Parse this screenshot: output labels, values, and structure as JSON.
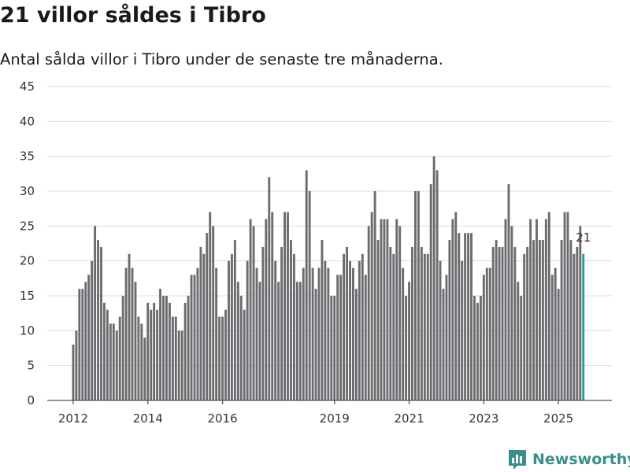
{
  "header": {
    "title": "21 villor såldes i Tibro",
    "subtitle": "Antal sålda villor i Tibro under de senaste tre månaderna."
  },
  "brand": {
    "name": "Newsworthy",
    "color": "#3a8f8c",
    "icon": "newsworthy-logo-icon"
  },
  "chart_data": {
    "type": "bar",
    "title": "21 villor såldes i Tibro",
    "subtitle": "Antal sålda villor i Tibro under de senaste tre månaderna.",
    "xlabel": "",
    "ylabel": "",
    "ylim": [
      0,
      45
    ],
    "yticks": [
      0,
      5,
      10,
      15,
      20,
      25,
      30,
      35,
      40,
      45
    ],
    "grid": true,
    "legend": "none",
    "bar_color": "#6c6c70",
    "highlight_color": "#2a9d94",
    "start_year": 2012,
    "x_tick_years": [
      2012,
      2014,
      2016,
      2019,
      2021,
      2023,
      2025
    ],
    "x_tick_labels": [
      "2012",
      "2014",
      "2016",
      "2019",
      "2021",
      "2023",
      "2025"
    ],
    "frequency": "monthly (rolling 3-month sum)",
    "values": [
      8,
      10,
      16,
      16,
      17,
      18,
      20,
      25,
      23,
      22,
      14,
      13,
      11,
      11,
      10,
      12,
      15,
      19,
      21,
      19,
      17,
      12,
      11,
      9,
      14,
      13,
      14,
      13,
      16,
      15,
      15,
      14,
      12,
      12,
      10,
      10,
      14,
      15,
      18,
      18,
      19,
      22,
      21,
      24,
      27,
      25,
      19,
      12,
      12,
      13,
      20,
      21,
      23,
      17,
      15,
      13,
      20,
      26,
      25,
      19,
      17,
      22,
      26,
      32,
      27,
      20,
      17,
      22,
      27,
      27,
      23,
      21,
      17,
      17,
      19,
      33,
      30,
      19,
      16,
      19,
      23,
      20,
      19,
      15,
      15,
      18,
      18,
      21,
      22,
      20,
      19,
      16,
      20,
      21,
      18,
      25,
      27,
      30,
      23,
      26,
      26,
      26,
      22,
      21,
      26,
      25,
      19,
      15,
      17,
      22,
      30,
      30,
      22,
      21,
      21,
      31,
      35,
      33,
      20,
      16,
      18,
      23,
      26,
      27,
      24,
      20,
      24,
      24,
      24,
      15,
      14,
      15,
      18,
      19,
      19,
      22,
      23,
      22,
      22,
      26,
      31,
      25,
      22,
      17,
      15,
      21,
      22,
      26,
      23,
      26,
      23,
      23,
      26,
      27,
      18,
      19,
      16,
      23,
      27,
      27,
      23,
      21,
      22,
      25,
      21
    ],
    "annotation": {
      "label": "21",
      "month_index": 164
    }
  }
}
